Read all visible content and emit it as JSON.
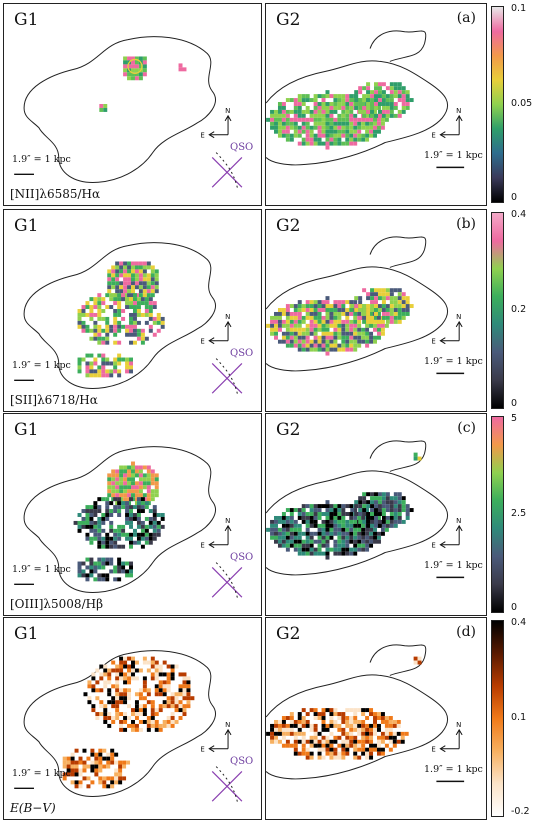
{
  "rows": [
    {
      "g1": {
        "name": "G1",
        "ratio": "[NII]λ6585/Hα",
        "scale": "1.9″ = 1 kpc",
        "qso": "QSO"
      },
      "g2": {
        "name": "G2",
        "scale": "1.9″ = 1 kpc",
        "tag": "(a)"
      },
      "colorbar": {
        "max": "0.1",
        "mid": "0.05",
        "min": "0",
        "colors": [
          "#e8e8e8",
          "#ee6aa0",
          "#f2994a",
          "#e8cf3a",
          "#8fd14f",
          "#2f9e6a",
          "#2e6d8e",
          "#3a3a5a",
          "#000000"
        ]
      }
    },
    {
      "g1": {
        "name": "G1",
        "ratio": "[SII]λ6718/Hα",
        "scale": "1.9″ = 1 kpc",
        "qso": "QSO"
      },
      "g2": {
        "name": "G2",
        "scale": "1.9″ = 1 kpc",
        "tag": "(b)"
      },
      "colorbar": {
        "max": "0.4",
        "mid": "0.2",
        "min": "0",
        "colors": [
          "#f3a9c8",
          "#ee6aa0",
          "#8fd14f",
          "#3cae5c",
          "#2f8a7a",
          "#4a5a7a",
          "#3a3a4a",
          "#000000"
        ]
      }
    },
    {
      "g1": {
        "name": "G1",
        "ratio": "[OIII]λ5008/Hβ",
        "scale": "1.9″ = 1 kpc",
        "qso": "QSO"
      },
      "g2": {
        "name": "G2",
        "scale": "1.9″ = 1 kpc",
        "tag": "(c)"
      },
      "colorbar": {
        "max": "5",
        "mid": "2.5",
        "min": "0",
        "colors": [
          "#ee6aa0",
          "#f2994a",
          "#8fd14f",
          "#3cae5c",
          "#2f8a7a",
          "#4a5a7a",
          "#3a3a4a",
          "#000000"
        ]
      }
    },
    {
      "g1": {
        "name": "G1",
        "ratio": "E(B−V)",
        "scale": "1.9″ = 1 kpc",
        "qso": "QSO"
      },
      "g2": {
        "name": "G2",
        "scale": "1.9″ = 1 kpc",
        "tag": "(d)"
      },
      "colorbar": {
        "max": "0.4",
        "mid": "0.1",
        "min": "-0.2",
        "colors": [
          "#000000",
          "#5a1a00",
          "#b83c00",
          "#f07a1a",
          "#f7b060",
          "#fbe3c8",
          "#ffffff"
        ]
      }
    }
  ]
}
